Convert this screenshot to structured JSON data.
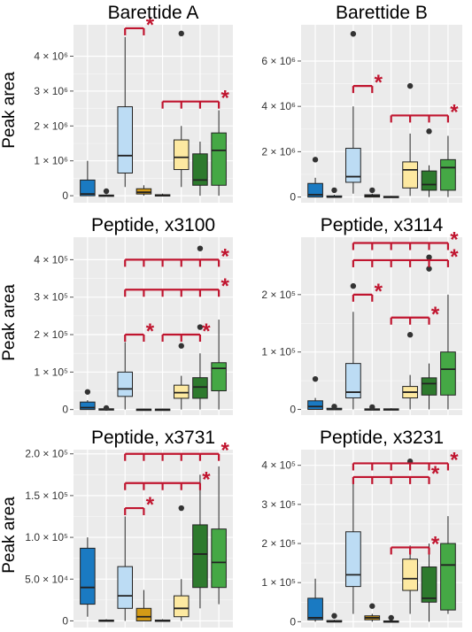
{
  "figure": {
    "ylabel": "Peak area",
    "colors": {
      "panel_bg": "#ebebeb",
      "grid": "#ffffff",
      "significance": "#c0152f",
      "box_fill": [
        "#1a7ac2",
        "#1a7ac2",
        "#bcdcf4",
        "#d39a16",
        "#d39a16",
        "#fde9a1",
        "#2d7a2d",
        "#45a845"
      ],
      "outline": "#222222"
    }
  },
  "chart_data": [
    {
      "type": "box",
      "title": "Barettide A",
      "ylabel": "Peak area",
      "ylim": [
        -200000,
        4900000
      ],
      "yticks": [
        {
          "value": 0,
          "label": "0"
        },
        {
          "value": 1000000,
          "label": "1 × 10⁶"
        },
        {
          "value": 2000000,
          "label": "2 × 10⁶"
        },
        {
          "value": 3000000,
          "label": "3 × 10⁶"
        },
        {
          "value": 4000000,
          "label": "4 × 10⁶"
        }
      ],
      "series": [
        {
          "q1": 0,
          "median": 50000,
          "q3": 450000,
          "whisker_low": 0,
          "whisker_high": 1000000,
          "outliers": []
        },
        {
          "q1": 0,
          "median": 0,
          "q3": 20000,
          "whisker_low": 0,
          "whisker_high": 40000,
          "outliers": [
            130000
          ]
        },
        {
          "q1": 650000,
          "median": 1150000,
          "q3": 2550000,
          "whisker_low": 250000,
          "whisker_high": 4550000,
          "outliers": []
        },
        {
          "q1": 50000,
          "median": 100000,
          "q3": 200000,
          "whisker_low": 0,
          "whisker_high": 300000,
          "outliers": []
        },
        {
          "q1": 0,
          "median": 0,
          "q3": 30000,
          "whisker_low": 0,
          "whisker_high": 60000,
          "outliers": []
        },
        {
          "q1": 750000,
          "median": 1100000,
          "q3": 1600000,
          "whisker_low": 250000,
          "whisker_high": 2000000,
          "outliers": [
            4650000
          ]
        },
        {
          "q1": 300000,
          "median": 450000,
          "q3": 1200000,
          "whisker_low": 0,
          "whisker_high": 1550000,
          "outliers": []
        },
        {
          "q1": 300000,
          "median": 1300000,
          "q3": 1800000,
          "whisker_low": 0,
          "whisker_high": 2450000,
          "outliers": []
        }
      ],
      "significance": [
        {
          "groups": [
            2,
            3
          ],
          "y": 4800000,
          "label": "*"
        },
        {
          "groups": [
            4,
            5,
            6,
            7
          ],
          "y": 2700000,
          "label": "*"
        }
      ]
    },
    {
      "type": "box",
      "title": "Barettide B",
      "ylabel": "",
      "ylim": [
        -250000,
        7600000
      ],
      "yticks": [
        {
          "value": 0,
          "label": "0"
        },
        {
          "value": 2000000,
          "label": "2 × 10⁶"
        },
        {
          "value": 4000000,
          "label": "4 × 10⁶"
        },
        {
          "value": 6000000,
          "label": "6 × 10⁶"
        }
      ],
      "series": [
        {
          "q1": 0,
          "median": 100000,
          "q3": 600000,
          "whisker_low": 0,
          "whisker_high": 850000,
          "outliers": [
            1650000
          ]
        },
        {
          "q1": 0,
          "median": 0,
          "q3": 50000,
          "whisker_low": 0,
          "whisker_high": 100000,
          "outliers": [
            300000
          ]
        },
        {
          "q1": 650000,
          "median": 900000,
          "q3": 2150000,
          "whisker_low": 150000,
          "whisker_high": 4000000,
          "outliers": [
            7200000
          ]
        },
        {
          "q1": 0,
          "median": 50000,
          "q3": 100000,
          "whisker_low": 0,
          "whisker_high": 150000,
          "outliers": [
            300000
          ]
        },
        {
          "q1": 0,
          "median": 0,
          "q3": 30000,
          "whisker_low": 0,
          "whisker_high": 50000,
          "outliers": []
        },
        {
          "q1": 400000,
          "median": 1200000,
          "q3": 1550000,
          "whisker_low": 50000,
          "whisker_high": 2800000,
          "outliers": [
            4900000
          ]
        },
        {
          "q1": 300000,
          "median": 550000,
          "q3": 1150000,
          "whisker_low": 0,
          "whisker_high": 1400000,
          "outliers": [
            2900000
          ]
        },
        {
          "q1": 300000,
          "median": 1300000,
          "q3": 1650000,
          "whisker_low": 0,
          "whisker_high": 2700000,
          "outliers": []
        }
      ],
      "significance": [
        {
          "groups": [
            2,
            3
          ],
          "y": 4900000,
          "label": "*"
        },
        {
          "groups": [
            4,
            5,
            6,
            7
          ],
          "y": 3600000,
          "label": "*"
        }
      ]
    },
    {
      "type": "box",
      "title": "Peptide, x3100",
      "ylabel": "Peak area",
      "ylim": [
        -15000,
        460000
      ],
      "yticks": [
        {
          "value": 0,
          "label": "0"
        },
        {
          "value": 100000,
          "label": "1 × 10⁵"
        },
        {
          "value": 200000,
          "label": "2 × 10⁵"
        },
        {
          "value": 300000,
          "label": "3 × 10⁵"
        },
        {
          "value": 400000,
          "label": "4 × 10⁵"
        }
      ],
      "series": [
        {
          "q1": 0,
          "median": 5000,
          "q3": 20000,
          "whisker_low": 0,
          "whisker_high": 25000,
          "outliers": [
            47000
          ]
        },
        {
          "q1": 0,
          "median": 0,
          "q3": 2000,
          "whisker_low": 0,
          "whisker_high": 3000,
          "outliers": [
            4000
          ]
        },
        {
          "q1": 35000,
          "median": 55000,
          "q3": 100000,
          "whisker_low": 0,
          "whisker_high": 180000,
          "outliers": []
        },
        {
          "q1": 0,
          "median": 0,
          "q3": 1000,
          "whisker_low": 0,
          "whisker_high": 2000,
          "outliers": []
        },
        {
          "q1": 0,
          "median": 0,
          "q3": 1000,
          "whisker_low": 0,
          "whisker_high": 2000,
          "outliers": []
        },
        {
          "q1": 30000,
          "median": 45000,
          "q3": 65000,
          "whisker_low": 0,
          "whisker_high": 90000,
          "outliers": [
            170000
          ]
        },
        {
          "q1": 30000,
          "median": 60000,
          "q3": 85000,
          "whisker_low": 0,
          "whisker_high": 150000,
          "outliers": [
            220000,
            430000
          ]
        },
        {
          "q1": 50000,
          "median": 110000,
          "q3": 125000,
          "whisker_low": 0,
          "whisker_high": 240000,
          "outliers": []
        }
      ],
      "significance": [
        {
          "groups": [
            2,
            3
          ],
          "y": 200000,
          "label": "*"
        },
        {
          "groups": [
            4,
            5,
            6
          ],
          "y": 200000,
          "label": "*"
        },
        {
          "groups": [
            2,
            3,
            4,
            5,
            6,
            7
          ],
          "y": 400000,
          "label": "*"
        },
        {
          "groups": [
            2,
            3,
            4,
            5,
            6,
            7
          ],
          "y": 320000,
          "label": "*"
        }
      ]
    },
    {
      "type": "box",
      "title": "Peptide, x3114",
      "ylabel": "",
      "ylim": [
        -10000,
        300000
      ],
      "yticks": [
        {
          "value": 0,
          "label": "0"
        },
        {
          "value": 100000,
          "label": "1 × 10⁵"
        },
        {
          "value": 200000,
          "label": "2 × 10⁵"
        }
      ],
      "series": [
        {
          "q1": 0,
          "median": 5000,
          "q3": 15000,
          "whisker_low": 0,
          "whisker_high": 20000,
          "outliers": [
            53000
          ]
        },
        {
          "q1": 0,
          "median": 0,
          "q3": 2000,
          "whisker_low": 0,
          "whisker_high": 3000,
          "outliers": [
            5000
          ]
        },
        {
          "q1": 20000,
          "median": 30000,
          "q3": 80000,
          "whisker_low": 0,
          "whisker_high": 170000,
          "outliers": [
            215000
          ]
        },
        {
          "q1": 0,
          "median": 0,
          "q3": 1000,
          "whisker_low": 0,
          "whisker_high": 2000,
          "outliers": [
            4000
          ]
        },
        {
          "q1": 0,
          "median": 0,
          "q3": 1000,
          "whisker_low": 0,
          "whisker_high": 2000,
          "outliers": []
        },
        {
          "q1": 20000,
          "median": 30000,
          "q3": 40000,
          "whisker_low": 0,
          "whisker_high": 60000,
          "outliers": [
            130000
          ]
        },
        {
          "q1": 25000,
          "median": 45000,
          "q3": 55000,
          "whisker_low": 0,
          "whisker_high": 80000,
          "outliers": [
            245000,
            265000
          ]
        },
        {
          "q1": 25000,
          "median": 70000,
          "q3": 100000,
          "whisker_low": 0,
          "whisker_high": 200000,
          "outliers": []
        }
      ],
      "significance": [
        {
          "groups": [
            2,
            3
          ],
          "y": 200000,
          "label": "*"
        },
        {
          "groups": [
            4,
            5,
            6
          ],
          "y": 160000,
          "label": "*"
        },
        {
          "groups": [
            2,
            3,
            4,
            5,
            6,
            7
          ],
          "y": 290000,
          "label": "*"
        },
        {
          "groups": [
            2,
            3,
            4,
            5,
            6,
            7
          ],
          "y": 260000,
          "label": "*"
        }
      ]
    },
    {
      "type": "box",
      "title": "Peptide, x3731",
      "ylabel": "Peak area",
      "ylim": [
        -8000,
        205000
      ],
      "yticks": [
        {
          "value": 0,
          "label": "0"
        },
        {
          "value": 50000,
          "label": "5.0 × 10⁴"
        },
        {
          "value": 100000,
          "label": "1.0 × 10⁵"
        },
        {
          "value": 150000,
          "label": "1.5 × 10⁵"
        },
        {
          "value": 200000,
          "label": "2.0 × 10⁵"
        }
      ],
      "series": [
        {
          "q1": 20000,
          "median": 40000,
          "q3": 87000,
          "whisker_low": 5000,
          "whisker_high": 100000,
          "outliers": []
        },
        {
          "q1": 0,
          "median": 0,
          "q3": 1000,
          "whisker_low": 0,
          "whisker_high": 2000,
          "outliers": []
        },
        {
          "q1": 15000,
          "median": 30000,
          "q3": 65000,
          "whisker_low": 0,
          "whisker_high": 125000,
          "outliers": []
        },
        {
          "q1": 0,
          "median": 5000,
          "q3": 15000,
          "whisker_low": 0,
          "whisker_high": 37000,
          "outliers": []
        },
        {
          "q1": 0,
          "median": 0,
          "q3": 1000,
          "whisker_low": 0,
          "whisker_high": 2000,
          "outliers": []
        },
        {
          "q1": 5000,
          "median": 15000,
          "q3": 30000,
          "whisker_low": 0,
          "whisker_high": 50000,
          "outliers": [
            135000
          ]
        },
        {
          "q1": 40000,
          "median": 80000,
          "q3": 115000,
          "whisker_low": 15000,
          "whisker_high": 175000,
          "outliers": []
        },
        {
          "q1": 40000,
          "median": 70000,
          "q3": 110000,
          "whisker_low": 20000,
          "whisker_high": 185000,
          "outliers": []
        }
      ],
      "significance": [
        {
          "groups": [
            2,
            3
          ],
          "y": 135000,
          "label": "*"
        },
        {
          "groups": [
            2,
            3,
            4,
            5,
            6,
            7
          ],
          "y": 200000,
          "label": "*"
        },
        {
          "groups": [
            2,
            3,
            4,
            5,
            6
          ],
          "y": 165000,
          "label": "*"
        }
      ]
    },
    {
      "type": "box",
      "title": "Peptide, x3231",
      "ylabel": "",
      "ylim": [
        -15000,
        440000
      ],
      "yticks": [
        {
          "value": 0,
          "label": "0"
        },
        {
          "value": 100000,
          "label": "1 × 10⁵"
        },
        {
          "value": 200000,
          "label": "2 × 10⁵"
        },
        {
          "value": 300000,
          "label": "3 × 10⁵"
        },
        {
          "value": 400000,
          "label": "4 × 10⁵"
        }
      ],
      "series": [
        {
          "q1": 5000,
          "median": 10000,
          "q3": 60000,
          "whisker_low": 0,
          "whisker_high": 110000,
          "outliers": []
        },
        {
          "q1": 0,
          "median": 0,
          "q3": 3000,
          "whisker_low": 0,
          "whisker_high": 5000,
          "outliers": [
            15000
          ]
        },
        {
          "q1": 90000,
          "median": 120000,
          "q3": 230000,
          "whisker_low": 20000,
          "whisker_high": 370000,
          "outliers": []
        },
        {
          "q1": 5000,
          "median": 10000,
          "q3": 15000,
          "whisker_low": 0,
          "whisker_high": 20000,
          "outliers": [
            40000
          ]
        },
        {
          "q1": 0,
          "median": 0,
          "q3": 2000,
          "whisker_low": 0,
          "whisker_high": 4000,
          "outliers": [
            10000
          ]
        },
        {
          "q1": 80000,
          "median": 110000,
          "q3": 160000,
          "whisker_low": 20000,
          "whisker_high": 195000,
          "outliers": [
            410000
          ]
        },
        {
          "q1": 50000,
          "median": 60000,
          "q3": 140000,
          "whisker_low": 0,
          "whisker_high": 200000,
          "outliers": []
        },
        {
          "q1": 30000,
          "median": 145000,
          "q3": 200000,
          "whisker_low": 20000,
          "whisker_high": 270000,
          "outliers": []
        }
      ],
      "significance": [
        {
          "groups": [
            4,
            5,
            6
          ],
          "y": 190000,
          "label": "*"
        },
        {
          "groups": [
            2,
            3,
            4,
            5,
            6,
            7
          ],
          "y": 405000,
          "label": "*"
        },
        {
          "groups": [
            2,
            3,
            4,
            5,
            6
          ],
          "y": 370000,
          "label": "*"
        }
      ]
    }
  ]
}
